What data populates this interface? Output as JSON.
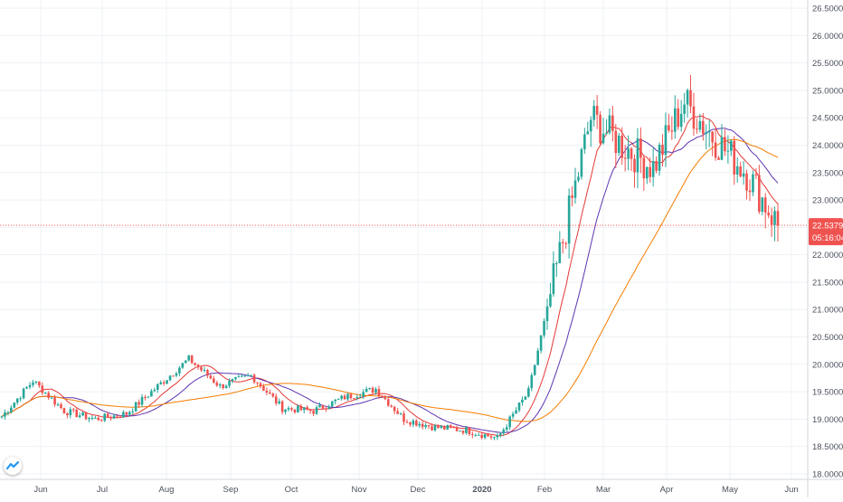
{
  "chart_data": {
    "type": "candlestick",
    "x_ticks": [
      "Jun",
      "Jul",
      "Aug",
      "Sep",
      "Oct",
      "Nov",
      "Dec",
      "2020",
      "Feb",
      "Mar",
      "Apr",
      "May",
      "Jun"
    ],
    "y_ticks": [
      "26.50000",
      "26.00000",
      "25.50000",
      "25.00000",
      "24.50000",
      "24.00000",
      "23.50000",
      "23.00000",
      "22.50000",
      "22.00000",
      "21.50000",
      "21.00000",
      "20.50000",
      "20.00000",
      "19.50000",
      "19.00000",
      "18.50000",
      "18.00000"
    ],
    "ylim": [
      17.9,
      26.65
    ],
    "last_price": "22.53790",
    "last_price_value": 22.5379,
    "countdown": "05:16:04",
    "grid": true,
    "colors": {
      "up": "#26a69a",
      "down": "#ef5350",
      "ma_fast": "#e53935",
      "ma_mid": "#5e35b1",
      "ma_slow": "#f57c00",
      "price_line": "#ef5350",
      "grid": "#eef1f4"
    },
    "anchors": [
      {
        "month": "Jun",
        "close": 19.05
      },
      {
        "month": "Jun",
        "close": 19.7
      },
      {
        "month": "Jul",
        "close": 19.15
      },
      {
        "month": "Jul",
        "close": 19.0
      },
      {
        "month": "Aug",
        "close": 19.1
      },
      {
        "month": "Aug",
        "close": 19.6
      },
      {
        "month": "Sep",
        "close": 20.1
      },
      {
        "month": "Sep",
        "close": 19.6
      },
      {
        "month": "Oct",
        "close": 19.8
      },
      {
        "month": "Oct",
        "close": 19.2
      },
      {
        "month": "Nov",
        "close": 19.15
      },
      {
        "month": "Nov",
        "close": 19.4
      },
      {
        "month": "Dec",
        "close": 19.55
      },
      {
        "month": "Dec",
        "close": 19.0
      },
      {
        "month": "2020",
        "close": 18.85
      },
      {
        "month": "Feb",
        "close": 18.8
      },
      {
        "month": "Feb",
        "close": 18.65
      },
      {
        "month": "Mar",
        "close": 19.5
      },
      {
        "month": "Mar",
        "close": 22.0
      },
      {
        "month": "Mar",
        "close": 24.5
      },
      {
        "month": "Apr",
        "close": 24.0
      },
      {
        "month": "Apr",
        "close": 23.6
      },
      {
        "month": "May",
        "close": 24.8
      },
      {
        "month": "May",
        "close": 24.1
      },
      {
        "month": "May",
        "close": 23.5
      },
      {
        "month": "May",
        "close": 22.54
      }
    ]
  }
}
